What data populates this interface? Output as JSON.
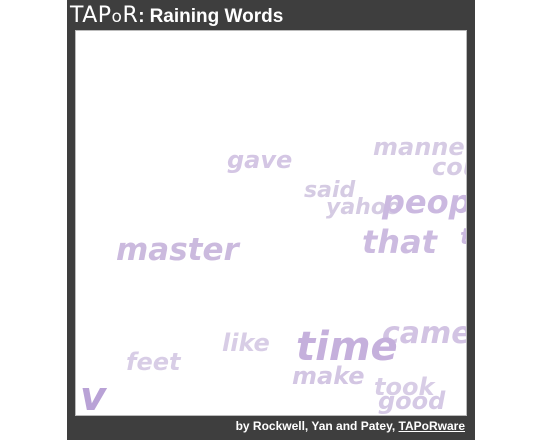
{
  "header": {
    "logo": "TAPoR",
    "separator": ":",
    "title": "Raining Words"
  },
  "canvas": {
    "words": [
      {
        "id": "gave",
        "text": "gave"
      },
      {
        "id": "manne",
        "text": "manne"
      },
      {
        "id": "cou",
        "text": "cou"
      },
      {
        "id": "said",
        "text": "said"
      },
      {
        "id": "yahoo",
        "text": "yahoo"
      },
      {
        "id": "peop",
        "text": "peop"
      },
      {
        "id": "master",
        "text": "master"
      },
      {
        "id": "that",
        "text": "that"
      },
      {
        "id": "cut1",
        "text": "t"
      },
      {
        "id": "came",
        "text": "came"
      },
      {
        "id": "like",
        "text": "like"
      },
      {
        "id": "time",
        "text": "time"
      },
      {
        "id": "feet",
        "text": "feet"
      },
      {
        "id": "make",
        "text": "make"
      },
      {
        "id": "took",
        "text": "took"
      },
      {
        "id": "good",
        "text": "good"
      },
      {
        "id": "cut2",
        "text": "v"
      }
    ],
    "word_color": "#d4c6e4"
  },
  "footer": {
    "credit": "by Rockwell, Yan and Patey, ",
    "link_text": "TAPoRware"
  },
  "colors": {
    "frame": "#3e3e3e",
    "canvas": "#ffffff",
    "header_text": "#ffffff"
  }
}
